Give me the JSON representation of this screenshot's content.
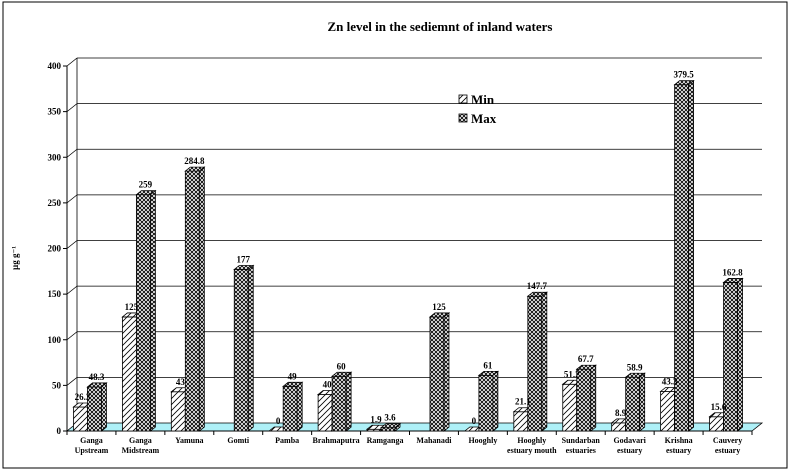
{
  "chart_data": {
    "type": "bar",
    "title": "Zn level in the sediemnt of inland waters",
    "ylabel": "µg g⁻¹",
    "xlabel": "",
    "ylim": [
      0,
      400
    ],
    "yticks": [
      0,
      50,
      100,
      150,
      200,
      250,
      300,
      350,
      400
    ],
    "grid": true,
    "legend_position": "upper-center",
    "style": "3d-column",
    "categories": [
      [
        "Ganga",
        "Upstream"
      ],
      [
        "Ganga",
        "Midstream"
      ],
      [
        "Yamuna"
      ],
      [
        "Gomti"
      ],
      [
        "Pamba"
      ],
      [
        "Brahmaputra"
      ],
      [
        "Ramganga"
      ],
      [
        "Mahanadi"
      ],
      [
        "Hooghly"
      ],
      [
        "Hooghly",
        "estuary mouth"
      ],
      [
        "Sundarban",
        "estuaries"
      ],
      [
        "Godavari",
        "estuary"
      ],
      [
        "Krishna",
        "estuary"
      ],
      [
        "Cauvery",
        "estuary"
      ]
    ],
    "series": [
      {
        "name": "Min",
        "values": [
          26.3,
          125,
          43,
          null,
          0,
          40,
          1.9,
          null,
          0,
          21.1,
          51.2,
          8.9,
          43.3,
          15.6
        ],
        "labels": [
          "26.3",
          "125",
          "43",
          "",
          "0",
          "40",
          "1.9",
          "",
          "0",
          "21.1",
          "51.2",
          "8.9",
          "43.3",
          "15.6"
        ]
      },
      {
        "name": "Max",
        "values": [
          48.3,
          259,
          284.8,
          177,
          49,
          60,
          3.6,
          125,
          61,
          147.7,
          67.7,
          58.9,
          379.5,
          162.8
        ],
        "labels": [
          "48.3",
          "259",
          "284.8",
          "177",
          "49",
          "60",
          "3.6",
          "125",
          "61",
          "147.7",
          "67.7",
          "58.9",
          "379.5",
          "162.8"
        ]
      }
    ],
    "colors": {
      "floor": "#aef0f7",
      "bar_fill": "#ffffff",
      "bar_outline": "#000000",
      "grid": "#000000"
    }
  }
}
